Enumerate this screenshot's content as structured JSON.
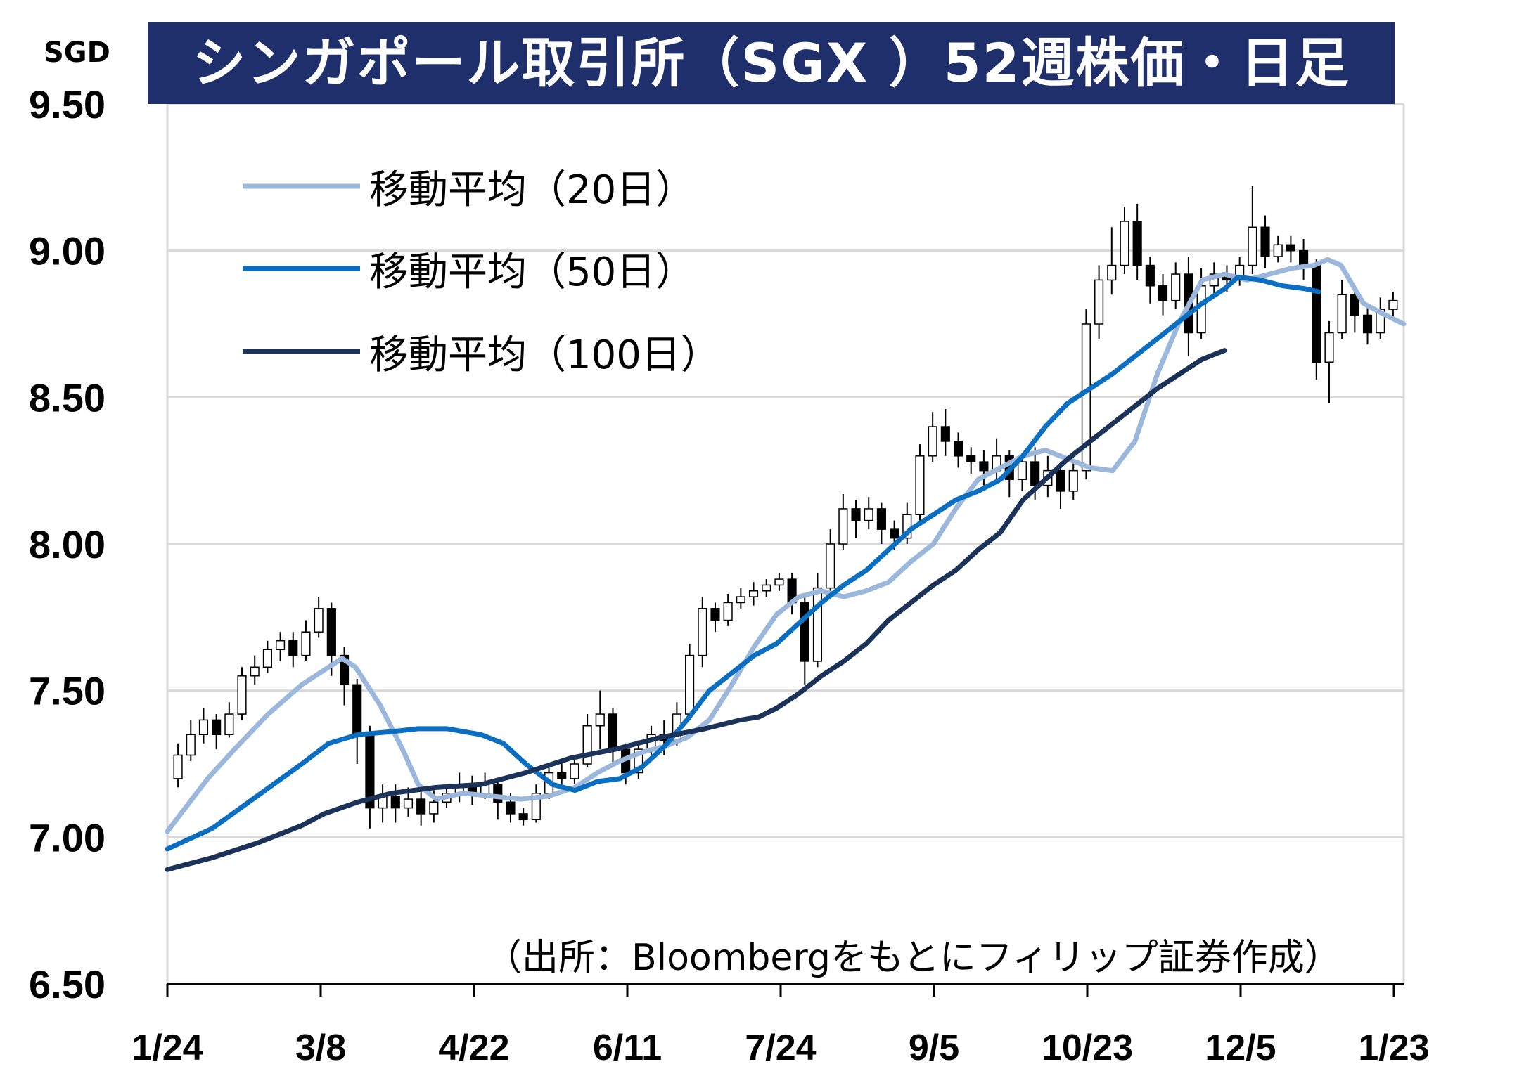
{
  "chart_data": {
    "type": "candlestick",
    "title": "シンガポール取引所（SGX ）52週株価・日足",
    "unit": "SGD",
    "source": "（出所：Bloombergをもとにフィリップ証券作成）",
    "y_ticks": [
      "9.50",
      "9.00",
      "8.50",
      "8.00",
      "7.50",
      "7.00",
      "6.50"
    ],
    "ylim": [
      6.5,
      9.5
    ],
    "x_ticks": [
      "1/24",
      "3/8",
      "4/22",
      "6/11",
      "7/24",
      "9/5",
      "10/23",
      "12/5",
      "1/23"
    ],
    "grid": "horizontal",
    "legend_placement": "top-left",
    "colors": {
      "ma20": "#9bb7dc",
      "ma50": "#0a6fc2",
      "ma100": "#1b3358",
      "candle": "#000000",
      "grid": "#d9d9d9",
      "title_bg": "#1f2f6b"
    },
    "series": [
      {
        "name": "移動平均（20日）",
        "points": [
          [
            0,
            7.02
          ],
          [
            8,
            7.1
          ],
          [
            18,
            7.2
          ],
          [
            30,
            7.3
          ],
          [
            45,
            7.42
          ],
          [
            60,
            7.52
          ],
          [
            72,
            7.58
          ],
          [
            78,
            7.61
          ],
          [
            84,
            7.58
          ],
          [
            95,
            7.45
          ],
          [
            105,
            7.3
          ],
          [
            112,
            7.18
          ],
          [
            120,
            7.13
          ],
          [
            132,
            7.15
          ],
          [
            145,
            7.14
          ],
          [
            158,
            7.13
          ],
          [
            170,
            7.14
          ],
          [
            182,
            7.17
          ],
          [
            192,
            7.22
          ],
          [
            202,
            7.26
          ],
          [
            212,
            7.29
          ],
          [
            222,
            7.31
          ],
          [
            232,
            7.34
          ],
          [
            242,
            7.4
          ],
          [
            252,
            7.52
          ],
          [
            262,
            7.65
          ],
          [
            272,
            7.76
          ],
          [
            282,
            7.82
          ],
          [
            292,
            7.84
          ],
          [
            302,
            7.82
          ],
          [
            312,
            7.84
          ],
          [
            322,
            7.87
          ],
          [
            332,
            7.94
          ],
          [
            342,
            8.0
          ],
          [
            352,
            8.12
          ],
          [
            362,
            8.22
          ],
          [
            372,
            8.26
          ],
          [
            382,
            8.3
          ],
          [
            392,
            8.32
          ],
          [
            402,
            8.29
          ],
          [
            412,
            8.26
          ],
          [
            422,
            8.25
          ],
          [
            432,
            8.35
          ],
          [
            442,
            8.58
          ],
          [
            452,
            8.76
          ],
          [
            462,
            8.9
          ],
          [
            472,
            8.92
          ],
          [
            482,
            8.9
          ],
          [
            492,
            8.92
          ],
          [
            502,
            8.94
          ],
          [
            512,
            8.95
          ],
          [
            518,
            8.97
          ],
          [
            524,
            8.95
          ],
          [
            534,
            8.82
          ],
          [
            544,
            8.78
          ],
          [
            552,
            8.75
          ]
        ]
      },
      {
        "name": "移動平均（50日）",
        "points": [
          [
            0,
            6.96
          ],
          [
            20,
            7.03
          ],
          [
            40,
            7.14
          ],
          [
            60,
            7.25
          ],
          [
            72,
            7.32
          ],
          [
            85,
            7.35
          ],
          [
            100,
            7.36
          ],
          [
            112,
            7.37
          ],
          [
            125,
            7.37
          ],
          [
            140,
            7.35
          ],
          [
            150,
            7.32
          ],
          [
            160,
            7.25
          ],
          [
            172,
            7.18
          ],
          [
            182,
            7.16
          ],
          [
            192,
            7.19
          ],
          [
            202,
            7.2
          ],
          [
            212,
            7.24
          ],
          [
            222,
            7.31
          ],
          [
            232,
            7.4
          ],
          [
            242,
            7.5
          ],
          [
            252,
            7.56
          ],
          [
            262,
            7.62
          ],
          [
            272,
            7.66
          ],
          [
            282,
            7.73
          ],
          [
            292,
            7.8
          ],
          [
            302,
            7.86
          ],
          [
            312,
            7.91
          ],
          [
            322,
            7.98
          ],
          [
            332,
            8.05
          ],
          [
            342,
            8.1
          ],
          [
            352,
            8.15
          ],
          [
            362,
            8.18
          ],
          [
            372,
            8.22
          ],
          [
            382,
            8.3
          ],
          [
            392,
            8.4
          ],
          [
            402,
            8.48
          ],
          [
            412,
            8.53
          ],
          [
            422,
            8.58
          ],
          [
            432,
            8.64
          ],
          [
            442,
            8.7
          ],
          [
            452,
            8.76
          ],
          [
            462,
            8.82
          ],
          [
            472,
            8.87
          ],
          [
            478,
            8.91
          ],
          [
            488,
            8.9
          ],
          [
            498,
            8.88
          ],
          [
            508,
            8.87
          ],
          [
            514,
            8.86
          ]
        ]
      },
      {
        "name": "移動平均（100日）",
        "points": [
          [
            0,
            6.89
          ],
          [
            20,
            6.93
          ],
          [
            40,
            6.98
          ],
          [
            60,
            7.04
          ],
          [
            70,
            7.08
          ],
          [
            85,
            7.12
          ],
          [
            100,
            7.15
          ],
          [
            120,
            7.17
          ],
          [
            140,
            7.18
          ],
          [
            160,
            7.22
          ],
          [
            180,
            7.27
          ],
          [
            200,
            7.3
          ],
          [
            220,
            7.34
          ],
          [
            240,
            7.37
          ],
          [
            256,
            7.4
          ],
          [
            264,
            7.41
          ],
          [
            272,
            7.44
          ],
          [
            282,
            7.49
          ],
          [
            292,
            7.55
          ],
          [
            302,
            7.6
          ],
          [
            312,
            7.66
          ],
          [
            322,
            7.74
          ],
          [
            332,
            7.8
          ],
          [
            342,
            7.86
          ],
          [
            352,
            7.91
          ],
          [
            362,
            7.98
          ],
          [
            372,
            8.04
          ],
          [
            382,
            8.15
          ],
          [
            392,
            8.22
          ],
          [
            402,
            8.29
          ],
          [
            412,
            8.35
          ],
          [
            422,
            8.41
          ],
          [
            432,
            8.47
          ],
          [
            442,
            8.53
          ],
          [
            452,
            8.58
          ],
          [
            462,
            8.63
          ],
          [
            472,
            8.66
          ]
        ]
      }
    ],
    "candles": [
      [
        7.2,
        7.28,
        7.17,
        7.32
      ],
      [
        7.28,
        7.35,
        7.26,
        7.4
      ],
      [
        7.35,
        7.4,
        7.32,
        7.44
      ],
      [
        7.4,
        7.35,
        7.3,
        7.42
      ],
      [
        7.35,
        7.42,
        7.34,
        7.46
      ],
      [
        7.42,
        7.55,
        7.4,
        7.58
      ],
      [
        7.55,
        7.58,
        7.52,
        7.62
      ],
      [
        7.58,
        7.64,
        7.56,
        7.67
      ],
      [
        7.64,
        7.67,
        7.6,
        7.7
      ],
      [
        7.67,
        7.62,
        7.58,
        7.7
      ],
      [
        7.62,
        7.7,
        7.6,
        7.74
      ],
      [
        7.7,
        7.78,
        7.68,
        7.82
      ],
      [
        7.78,
        7.62,
        7.55,
        7.8
      ],
      [
        7.62,
        7.52,
        7.45,
        7.65
      ],
      [
        7.52,
        7.35,
        7.25,
        7.54
      ],
      [
        7.35,
        7.1,
        7.03,
        7.38
      ],
      [
        7.1,
        7.14,
        7.05,
        7.18
      ],
      [
        7.14,
        7.1,
        7.05,
        7.18
      ],
      [
        7.1,
        7.13,
        7.07,
        7.17
      ],
      [
        7.13,
        7.08,
        7.04,
        7.16
      ],
      [
        7.08,
        7.12,
        7.05,
        7.16
      ],
      [
        7.12,
        7.15,
        7.1,
        7.18
      ],
      [
        7.15,
        7.18,
        7.12,
        7.22
      ],
      [
        7.18,
        7.15,
        7.11,
        7.21
      ],
      [
        7.15,
        7.18,
        7.13,
        7.22
      ],
      [
        7.18,
        7.12,
        7.06,
        7.2
      ],
      [
        7.12,
        7.08,
        7.05,
        7.15
      ],
      [
        7.08,
        7.06,
        7.04,
        7.1
      ],
      [
        7.06,
        7.15,
        7.05,
        7.18
      ],
      [
        7.15,
        7.22,
        7.13,
        7.25
      ],
      [
        7.22,
        7.2,
        7.16,
        7.26
      ],
      [
        7.2,
        7.25,
        7.18,
        7.28
      ],
      [
        7.25,
        7.38,
        7.24,
        7.42
      ],
      [
        7.38,
        7.42,
        7.3,
        7.5
      ],
      [
        7.42,
        7.3,
        7.25,
        7.44
      ],
      [
        7.3,
        7.22,
        7.18,
        7.32
      ],
      [
        7.22,
        7.3,
        7.2,
        7.33
      ],
      [
        7.3,
        7.35,
        7.28,
        7.38
      ],
      [
        7.35,
        7.33,
        7.28,
        7.4
      ],
      [
        7.33,
        7.42,
        7.31,
        7.46
      ],
      [
        7.42,
        7.62,
        7.4,
        7.66
      ],
      [
        7.62,
        7.78,
        7.58,
        7.82
      ],
      [
        7.78,
        7.74,
        7.7,
        7.8
      ],
      [
        7.74,
        7.8,
        7.72,
        7.83
      ],
      [
        7.8,
        7.82,
        7.78,
        7.85
      ],
      [
        7.82,
        7.84,
        7.79,
        7.87
      ],
      [
        7.84,
        7.86,
        7.82,
        7.88
      ],
      [
        7.86,
        7.88,
        7.84,
        7.9
      ],
      [
        7.88,
        7.8,
        7.76,
        7.9
      ],
      [
        7.8,
        7.6,
        7.52,
        7.82
      ],
      [
        7.6,
        7.85,
        7.58,
        7.9
      ],
      [
        7.85,
        8.0,
        7.83,
        8.05
      ],
      [
        8.0,
        8.12,
        7.98,
        8.17
      ],
      [
        8.12,
        8.08,
        8.02,
        8.15
      ],
      [
        8.08,
        8.12,
        8.05,
        8.16
      ],
      [
        8.12,
        8.05,
        8.0,
        8.14
      ],
      [
        8.05,
        8.02,
        7.98,
        8.08
      ],
      [
        8.02,
        8.1,
        8.0,
        8.14
      ],
      [
        8.1,
        8.3,
        8.08,
        8.34
      ],
      [
        8.3,
        8.4,
        8.28,
        8.45
      ],
      [
        8.4,
        8.35,
        8.3,
        8.46
      ],
      [
        8.35,
        8.3,
        8.26,
        8.38
      ],
      [
        8.3,
        8.28,
        8.24,
        8.33
      ],
      [
        8.28,
        8.25,
        8.2,
        8.32
      ],
      [
        8.25,
        8.3,
        8.22,
        8.36
      ],
      [
        8.3,
        8.22,
        8.16,
        8.32
      ],
      [
        8.22,
        8.28,
        8.18,
        8.31
      ],
      [
        8.28,
        8.2,
        8.15,
        8.33
      ],
      [
        8.2,
        8.25,
        8.16,
        8.3
      ],
      [
        8.25,
        8.18,
        8.12,
        8.28
      ],
      [
        8.18,
        8.25,
        8.15,
        8.28
      ],
      [
        8.25,
        8.75,
        8.22,
        8.8
      ],
      [
        8.75,
        8.9,
        8.7,
        8.95
      ],
      [
        8.9,
        8.95,
        8.85,
        9.08
      ],
      [
        8.95,
        9.1,
        8.92,
        9.15
      ],
      [
        9.1,
        8.95,
        8.9,
        9.16
      ],
      [
        8.95,
        8.88,
        8.82,
        8.98
      ],
      [
        8.88,
        8.83,
        8.78,
        8.92
      ],
      [
        8.83,
        8.92,
        8.8,
        8.96
      ],
      [
        8.92,
        8.72,
        8.64,
        8.98
      ],
      [
        8.72,
        8.88,
        8.7,
        8.94
      ],
      [
        8.88,
        8.92,
        8.84,
        8.96
      ],
      [
        8.92,
        8.9,
        8.86,
        8.95
      ],
      [
        8.9,
        8.95,
        8.88,
        8.98
      ],
      [
        8.95,
        9.08,
        8.92,
        9.22
      ],
      [
        9.08,
        8.98,
        8.94,
        9.12
      ],
      [
        8.98,
        9.02,
        8.96,
        9.05
      ],
      [
        9.02,
        9.0,
        8.96,
        9.05
      ],
      [
        9.0,
        8.95,
        8.9,
        9.04
      ],
      [
        8.95,
        8.62,
        8.56,
        8.97
      ],
      [
        8.62,
        8.72,
        8.48,
        8.76
      ],
      [
        8.72,
        8.85,
        8.7,
        8.9
      ],
      [
        8.85,
        8.78,
        8.72,
        8.88
      ],
      [
        8.78,
        8.72,
        8.68,
        8.82
      ],
      [
        8.72,
        8.8,
        8.7,
        8.84
      ],
      [
        8.8,
        8.83,
        8.76,
        8.86
      ]
    ]
  },
  "legend": {
    "ma20": "移動平均（20日）",
    "ma50": "移動平均（50日）",
    "ma100": "移動平均（100日）"
  }
}
